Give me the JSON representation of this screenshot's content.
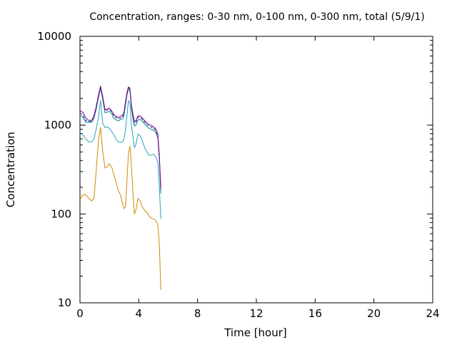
{
  "chart_data": {
    "type": "line",
    "title": "Concentration, ranges: 0-30 nm, 0-100 nm, 0-300 nm, total (5/9/1)",
    "xlabel": "Time [hour]",
    "ylabel": "Concentration",
    "xlim": [
      0,
      24
    ],
    "ylim": [
      10,
      10000
    ],
    "yscale": "log",
    "grid": false,
    "x_ticks": [
      0,
      4,
      8,
      12,
      16,
      20,
      24
    ],
    "x_tick_labels": [
      "0",
      "4",
      "8",
      "12",
      "16",
      "20",
      "24"
    ],
    "y_ticks": [
      10,
      100,
      1000,
      10000
    ],
    "y_tick_labels": [
      "10",
      "100",
      "1000",
      "10000"
    ],
    "series": [
      {
        "color": "#cc8c00",
        "points": [
          [
            0.0,
            145
          ],
          [
            0.2,
            165
          ],
          [
            0.4,
            165
          ],
          [
            0.6,
            150
          ],
          [
            0.8,
            140
          ],
          [
            0.95,
            150
          ],
          [
            1.1,
            300
          ],
          [
            1.25,
            650
          ],
          [
            1.4,
            950
          ],
          [
            1.55,
            500
          ],
          [
            1.7,
            330
          ],
          [
            1.85,
            340
          ],
          [
            2.0,
            370
          ],
          [
            2.15,
            340
          ],
          [
            2.3,
            280
          ],
          [
            2.45,
            230
          ],
          [
            2.6,
            185
          ],
          [
            2.75,
            165
          ],
          [
            2.9,
            130
          ],
          [
            3.0,
            115
          ],
          [
            3.1,
            120
          ],
          [
            3.2,
            250
          ],
          [
            3.3,
            480
          ],
          [
            3.4,
            580
          ],
          [
            3.5,
            350
          ],
          [
            3.6,
            180
          ],
          [
            3.7,
            100
          ],
          [
            3.8,
            110
          ],
          [
            3.95,
            150
          ],
          [
            4.1,
            140
          ],
          [
            4.25,
            120
          ],
          [
            4.4,
            110
          ],
          [
            4.55,
            105
          ],
          [
            4.7,
            95
          ],
          [
            4.85,
            90
          ],
          [
            5.0,
            88
          ],
          [
            5.15,
            85
          ],
          [
            5.3,
            75
          ],
          [
            5.4,
            45
          ],
          [
            5.5,
            14
          ]
        ]
      },
      {
        "color": "#26a2bd",
        "points": [
          [
            0.0,
            830
          ],
          [
            0.2,
            780
          ],
          [
            0.4,
            700
          ],
          [
            0.6,
            650
          ],
          [
            0.8,
            650
          ],
          [
            0.95,
            700
          ],
          [
            1.1,
            900
          ],
          [
            1.25,
            1200
          ],
          [
            1.4,
            1900
          ],
          [
            1.55,
            1050
          ],
          [
            1.7,
            940
          ],
          [
            1.85,
            960
          ],
          [
            2.0,
            920
          ],
          [
            2.15,
            850
          ],
          [
            2.3,
            780
          ],
          [
            2.45,
            700
          ],
          [
            2.6,
            650
          ],
          [
            2.75,
            640
          ],
          [
            2.9,
            650
          ],
          [
            3.0,
            700
          ],
          [
            3.1,
            900
          ],
          [
            3.2,
            1300
          ],
          [
            3.3,
            1900
          ],
          [
            3.4,
            1750
          ],
          [
            3.5,
            1000
          ],
          [
            3.6,
            760
          ],
          [
            3.7,
            560
          ],
          [
            3.8,
            600
          ],
          [
            3.95,
            800
          ],
          [
            4.1,
            760
          ],
          [
            4.25,
            660
          ],
          [
            4.4,
            560
          ],
          [
            4.55,
            500
          ],
          [
            4.7,
            460
          ],
          [
            4.85,
            460
          ],
          [
            5.0,
            470
          ],
          [
            5.15,
            440
          ],
          [
            5.3,
            380
          ],
          [
            5.4,
            200
          ],
          [
            5.5,
            88
          ]
        ]
      },
      {
        "color": "#008a82",
        "points": [
          [
            0.0,
            1300
          ],
          [
            0.2,
            1230
          ],
          [
            0.4,
            1080
          ],
          [
            0.6,
            1070
          ],
          [
            0.8,
            1080
          ],
          [
            0.95,
            1200
          ],
          [
            1.1,
            1500
          ],
          [
            1.25,
            2000
          ],
          [
            1.4,
            2600
          ],
          [
            1.55,
            1950
          ],
          [
            1.7,
            1380
          ],
          [
            1.85,
            1400
          ],
          [
            2.0,
            1430
          ],
          [
            2.15,
            1350
          ],
          [
            2.3,
            1200
          ],
          [
            2.45,
            1150
          ],
          [
            2.6,
            1120
          ],
          [
            2.75,
            1150
          ],
          [
            2.9,
            1180
          ],
          [
            3.0,
            1300
          ],
          [
            3.1,
            1700
          ],
          [
            3.2,
            2200
          ],
          [
            3.3,
            2550
          ],
          [
            3.4,
            2450
          ],
          [
            3.5,
            1550
          ],
          [
            3.6,
            1200
          ],
          [
            3.7,
            980
          ],
          [
            3.8,
            1000
          ],
          [
            3.95,
            1150
          ],
          [
            4.1,
            1160
          ],
          [
            4.25,
            1100
          ],
          [
            4.4,
            1030
          ],
          [
            4.55,
            970
          ],
          [
            4.7,
            920
          ],
          [
            4.85,
            900
          ],
          [
            5.0,
            880
          ],
          [
            5.15,
            830
          ],
          [
            5.3,
            720
          ],
          [
            5.4,
            400
          ],
          [
            5.5,
            170
          ]
        ]
      },
      {
        "color": "#1a3a9a",
        "dash": true,
        "points": [
          [
            0.0,
            1380
          ],
          [
            0.2,
            1300
          ],
          [
            0.4,
            1120
          ],
          [
            0.6,
            1100
          ],
          [
            0.8,
            1110
          ],
          [
            0.95,
            1250
          ],
          [
            1.1,
            1560
          ],
          [
            1.25,
            2100
          ],
          [
            1.4,
            2700
          ],
          [
            1.55,
            2050
          ],
          [
            1.7,
            1450
          ],
          [
            1.85,
            1480
          ],
          [
            2.0,
            1500
          ],
          [
            2.15,
            1420
          ],
          [
            2.3,
            1280
          ],
          [
            2.45,
            1220
          ],
          [
            2.6,
            1180
          ],
          [
            2.75,
            1200
          ],
          [
            2.9,
            1240
          ],
          [
            3.0,
            1380
          ],
          [
            3.1,
            1800
          ],
          [
            3.2,
            2300
          ],
          [
            3.3,
            2650
          ],
          [
            3.4,
            2550
          ],
          [
            3.5,
            1650
          ],
          [
            3.6,
            1300
          ],
          [
            3.7,
            1050
          ],
          [
            3.8,
            1080
          ],
          [
            3.95,
            1230
          ],
          [
            4.1,
            1230
          ],
          [
            4.25,
            1160
          ],
          [
            4.4,
            1080
          ],
          [
            4.55,
            1020
          ],
          [
            4.7,
            980
          ],
          [
            4.85,
            950
          ],
          [
            5.0,
            930
          ],
          [
            5.15,
            880
          ],
          [
            5.3,
            760
          ],
          [
            5.4,
            420
          ],
          [
            5.5,
            185
          ]
        ]
      },
      {
        "color": "#8b008b",
        "points": [
          [
            0.0,
            1450
          ],
          [
            0.2,
            1400
          ],
          [
            0.4,
            1200
          ],
          [
            0.6,
            1130
          ],
          [
            0.8,
            1130
          ],
          [
            0.95,
            1280
          ],
          [
            1.1,
            1600
          ],
          [
            1.25,
            2150
          ],
          [
            1.4,
            2750
          ],
          [
            1.55,
            2100
          ],
          [
            1.7,
            1500
          ],
          [
            1.85,
            1520
          ],
          [
            2.0,
            1550
          ],
          [
            2.15,
            1450
          ],
          [
            2.3,
            1320
          ],
          [
            2.45,
            1260
          ],
          [
            2.6,
            1220
          ],
          [
            2.75,
            1250
          ],
          [
            2.9,
            1300
          ],
          [
            3.0,
            1420
          ],
          [
            3.1,
            1850
          ],
          [
            3.2,
            2350
          ],
          [
            3.3,
            2700
          ],
          [
            3.4,
            2600
          ],
          [
            3.5,
            1700
          ],
          [
            3.6,
            1350
          ],
          [
            3.7,
            1100
          ],
          [
            3.8,
            1120
          ],
          [
            3.95,
            1270
          ],
          [
            4.1,
            1270
          ],
          [
            4.25,
            1200
          ],
          [
            4.4,
            1120
          ],
          [
            4.55,
            1060
          ],
          [
            4.7,
            1020
          ],
          [
            4.85,
            990
          ],
          [
            5.0,
            960
          ],
          [
            5.15,
            910
          ],
          [
            5.3,
            790
          ],
          [
            5.4,
            450
          ],
          [
            5.5,
            200
          ]
        ]
      }
    ]
  }
}
